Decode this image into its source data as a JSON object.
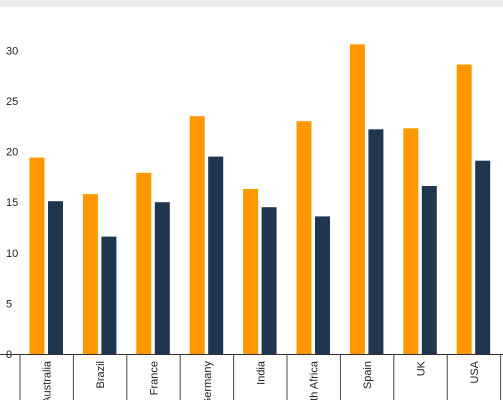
{
  "chart_data": {
    "type": "bar",
    "categories": [
      "Australia",
      "Brazil",
      "France",
      "Germany",
      "India",
      "South Africa",
      "Spain",
      "UK",
      "USA"
    ],
    "series": [
      {
        "color": "#FF9800",
        "values": [
          19.4,
          15.8,
          17.9,
          23.5,
          16.3,
          23.0,
          30.6,
          22.3,
          28.6
        ]
      },
      {
        "color": "#1F3550",
        "values": [
          15.1,
          11.6,
          15.0,
          19.5,
          14.5,
          13.6,
          22.2,
          16.6,
          19.1
        ]
      }
    ],
    "yticks": [
      "0",
      "5",
      "10",
      "15",
      "20",
      "25",
      "30"
    ],
    "ylim": [
      0,
      33
    ],
    "grid": false,
    "legend": "none"
  }
}
